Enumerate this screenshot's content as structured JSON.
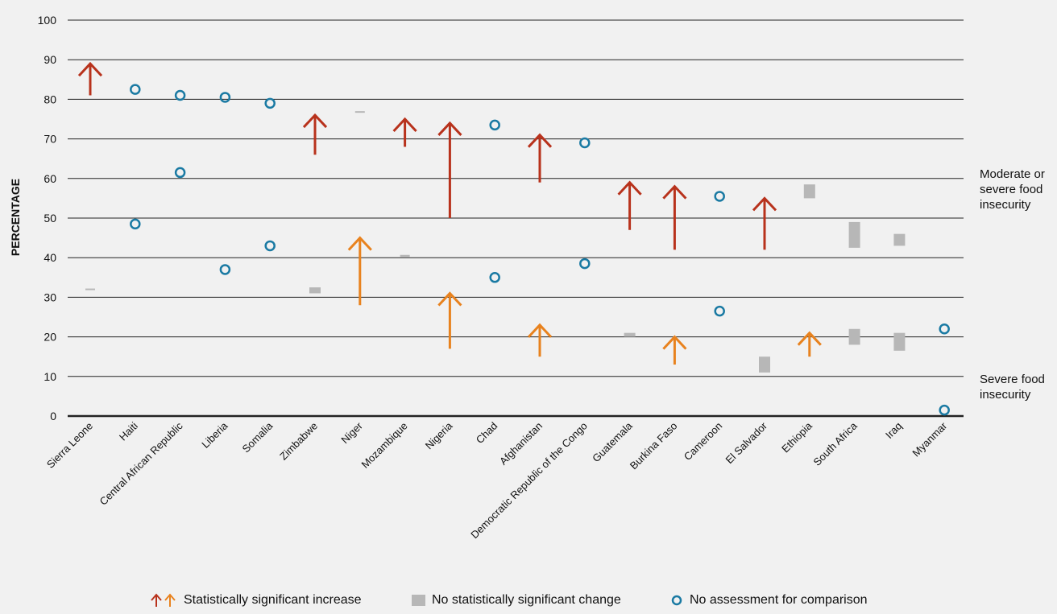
{
  "chart_data": {
    "type": "scatter",
    "ylabel": "PERCENTAGE",
    "ylim": [
      0,
      100
    ],
    "yticks": [
      0,
      10,
      20,
      30,
      40,
      50,
      60,
      70,
      80,
      90,
      100
    ],
    "categories": [
      "Sierra Leone",
      "Haiti",
      "Central African Republic",
      "Liberia",
      "Somalia",
      "Zimbabwe",
      "Niger",
      "Mozambique",
      "Nigeria",
      "Chad",
      "Afghanistan",
      "Democratic Republic of the Congo",
      "Guatemala",
      "Burkina Faso",
      "Cameroon",
      "El Salvador",
      "Ethiopia",
      "South Africa",
      "Iraq",
      "Myanmar"
    ],
    "series": [
      {
        "name": "Moderate or severe food insecurity",
        "values": [
          {
            "status": "increase",
            "from": 81,
            "to": 89
          },
          {
            "status": "no_assessment",
            "value": 82.5
          },
          {
            "status": "no_assessment",
            "value": 81
          },
          {
            "status": "no_assessment",
            "value": 80.5
          },
          {
            "status": "no_assessment",
            "value": 79
          },
          {
            "status": "increase",
            "from": 66,
            "to": 76
          },
          {
            "status": "no_change",
            "from": 76.6,
            "to": 77
          },
          {
            "status": "increase",
            "from": 68,
            "to": 75
          },
          {
            "status": "increase",
            "from": 50,
            "to": 74
          },
          {
            "status": "no_assessment",
            "value": 73.5
          },
          {
            "status": "increase",
            "from": 59,
            "to": 71
          },
          {
            "status": "no_assessment",
            "value": 69
          },
          {
            "status": "increase",
            "from": 47,
            "to": 59
          },
          {
            "status": "increase",
            "from": 42,
            "to": 58
          },
          {
            "status": "no_assessment",
            "value": 55.5
          },
          {
            "status": "increase",
            "from": 42,
            "to": 55
          },
          {
            "status": "no_change",
            "from": 55,
            "to": 58.5
          },
          {
            "status": "no_change",
            "from": 42.5,
            "to": 49
          },
          {
            "status": "no_change",
            "from": 43,
            "to": 46
          },
          {
            "status": "no_assessment",
            "value": 22
          }
        ]
      },
      {
        "name": "Severe food insecurity",
        "values": [
          {
            "status": "no_change",
            "from": 31.8,
            "to": 32.2
          },
          {
            "status": "no_assessment",
            "value": 48.5
          },
          {
            "status": "no_assessment",
            "value": 61.5
          },
          {
            "status": "no_assessment",
            "value": 37
          },
          {
            "status": "no_assessment",
            "value": 43
          },
          {
            "status": "no_change",
            "from": 31,
            "to": 32.5
          },
          {
            "status": "increase",
            "from": 28,
            "to": 45
          },
          {
            "status": "no_change",
            "from": 40.2,
            "to": 40.7
          },
          {
            "status": "increase",
            "from": 17,
            "to": 31
          },
          {
            "status": "no_assessment",
            "value": 35
          },
          {
            "status": "increase",
            "from": 15,
            "to": 23
          },
          {
            "status": "no_assessment",
            "value": 38.5
          },
          {
            "status": "no_change",
            "from": 20,
            "to": 21
          },
          {
            "status": "increase",
            "from": 13,
            "to": 20
          },
          {
            "status": "no_assessment",
            "value": 26.5
          },
          {
            "status": "no_change",
            "from": 11,
            "to": 15
          },
          {
            "status": "increase",
            "from": 15,
            "to": 21
          },
          {
            "status": "no_change",
            "from": 18,
            "to": 22
          },
          {
            "status": "no_change",
            "from": 16.5,
            "to": 21
          },
          {
            "status": "no_assessment",
            "value": 1.5
          }
        ]
      }
    ],
    "side_labels": {
      "moderate_or_severe": "Moderate or severe food insecurity",
      "severe": "Severe food insecurity"
    },
    "legend": {
      "increase": "Statistically significant increase",
      "no_change": "No statistically significant change",
      "no_assessment": "No assessment for comparison"
    },
    "colors": {
      "moderate_arrow": "#b8321c",
      "severe_arrow": "#e8821e",
      "no_change": "#b7b7b7",
      "no_assessment": "#1a7aa3",
      "grid": "#222222",
      "background": "#f1f1f1"
    },
    "grid": true
  }
}
